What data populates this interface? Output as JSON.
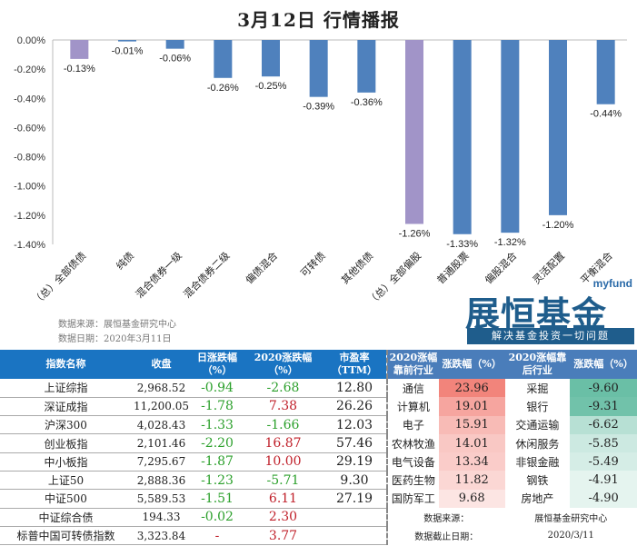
{
  "title": "3月12日  行情播报",
  "chart_data": {
    "type": "bar",
    "title": "3月12日  行情播报",
    "categories": [
      "（总）全部债债",
      "纯债",
      "混合债券一级",
      "混合债券二级",
      "偏债混合",
      "可转债",
      "其他债债",
      "（总）全部偏股",
      "普通股票",
      "偏股混合",
      "灵活配置",
      "平衡混合"
    ],
    "values": [
      -0.13,
      -0.01,
      -0.06,
      -0.26,
      -0.25,
      -0.39,
      -0.36,
      -1.26,
      -1.33,
      -1.32,
      -1.2,
      -0.44
    ],
    "labels": [
      "-0.13%",
      "-0.01%",
      "-0.06%",
      "-0.26%",
      "-0.25%",
      "-0.39%",
      "-0.36%",
      "-1.26%",
      "-1.33%",
      "-1.32%",
      "-1.20%",
      "-0.44%"
    ],
    "highlight": [
      0,
      7
    ],
    "colors": {
      "bar": "#4f81bd",
      "highlight": "#a194c8"
    },
    "ylim": [
      -1.4,
      0
    ],
    "yticks": [
      "0.00%",
      "-0.20%",
      "-0.40%",
      "-0.60%",
      "-0.80%",
      "-1.00%",
      "-1.20%",
      "-1.40%"
    ],
    "xlabel": "",
    "ylabel": ""
  },
  "source": {
    "line1": "数据来源：展恒基金研究中心",
    "line2": "数据日期：2020年3月11日"
  },
  "logo": {
    "top": "myfund",
    "name": "展恒基金",
    "slogan": "解决基金投资一切问题"
  },
  "left_table": {
    "headers": [
      "指数名称",
      "收盘",
      "日涨跌幅（%）",
      "2020涨跌幅（%）",
      "市盈率（TTM）"
    ],
    "rows": [
      [
        "上证综指",
        "2,968.52",
        "-0.94",
        "-2.68",
        "12.80"
      ],
      [
        "深证成指",
        "11,200.05",
        "-1.78",
        "7.38",
        "26.26"
      ],
      [
        "沪深300",
        "4,028.43",
        "-1.33",
        "-1.66",
        "12.03"
      ],
      [
        "创业板指",
        "2,101.46",
        "-2.20",
        "16.87",
        "57.46"
      ],
      [
        "中小板指",
        "7,295.67",
        "-1.87",
        "10.00",
        "29.19"
      ],
      [
        "上证50",
        "2,888.36",
        "-1.23",
        "-5.71",
        "9.30"
      ],
      [
        "中证500",
        "5,589.53",
        "-1.51",
        "6.11",
        "27.19"
      ],
      [
        "中证综合债",
        "194.33",
        "-0.02",
        "2.30",
        ""
      ],
      [
        "标普中国可转债指数",
        "3,323.84",
        "-",
        "3.77",
        ""
      ]
    ]
  },
  "right_table": {
    "headers": [
      "2020涨幅靠前行业",
      "涨跌幅（%）",
      "2020涨幅靠后行业",
      "涨跌幅（%）"
    ],
    "rows": [
      [
        "通信",
        "23.96",
        "采掘",
        "-9.60"
      ],
      [
        "计算机",
        "19.01",
        "银行",
        "-9.31"
      ],
      [
        "电子",
        "15.91",
        "交通运输",
        "-6.62"
      ],
      [
        "农林牧渔",
        "14.01",
        "休闲服务",
        "-5.85"
      ],
      [
        "电气设备",
        "13.34",
        "非银金融",
        "-5.49"
      ],
      [
        "医药生物",
        "11.82",
        "钢铁",
        "-4.91"
      ],
      [
        "国防军工",
        "9.68",
        "房地产",
        "-4.90"
      ]
    ],
    "source_label": "数据来源：",
    "source_value": "展恒基金研究中心",
    "date_label": "数据截止日期：",
    "date_value": "2020/3/11"
  }
}
